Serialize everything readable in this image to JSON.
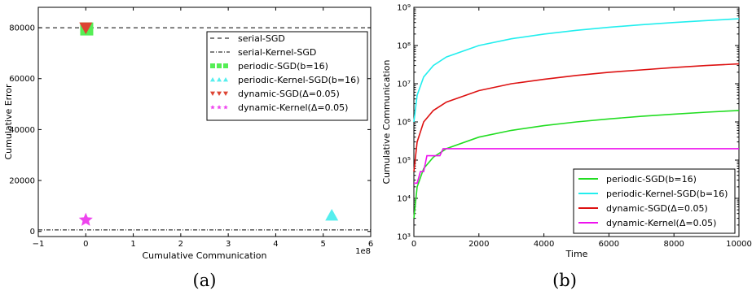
{
  "chart_data": [
    {
      "type": "scatter",
      "panel": "(a)",
      "xlabel": "Cumulative Communication",
      "ylabel": "Cumulative Error",
      "x_multiplier_label": "1e8",
      "xlim": [
        -1,
        6
      ],
      "ylim": [
        -2000,
        88000
      ],
      "xticks": [
        "−1",
        "0",
        "1",
        "2",
        "3",
        "4",
        "5",
        "6"
      ],
      "yticks": [
        "0",
        "20000",
        "40000",
        "60000",
        "80000"
      ],
      "legend_position": "upper-right",
      "series": [
        {
          "name": "serial-SGD",
          "kind": "hline",
          "y": 80000,
          "style": "dashed",
          "color": "#000000"
        },
        {
          "name": "serial-Kernel-SGD",
          "kind": "hline",
          "y": 600,
          "style": "dashdot",
          "color": "#000000"
        },
        {
          "name": "periodic-SGD(b=16)",
          "marker": "square",
          "color": "#55ee55",
          "points": [
            [
              0.02,
              79500
            ]
          ]
        },
        {
          "name": "periodic-Kernel-SGD(b=16)",
          "marker": "triangle-up",
          "color": "#55eeee",
          "points": [
            [
              5.18,
              6300
            ]
          ]
        },
        {
          "name": "dynamic-SGD(Δ=0.05)",
          "marker": "triangle-down",
          "color": "#dd4433",
          "points": [
            [
              0.0,
              80000
            ]
          ]
        },
        {
          "name": "dynamic-Kernel(Δ=0.05)",
          "marker": "star",
          "color": "#ee44ee",
          "points": [
            [
              0.0,
              4500
            ]
          ]
        }
      ]
    },
    {
      "type": "line",
      "panel": "(b)",
      "xlabel": "Time",
      "ylabel": "Cumulative Communication",
      "yscale": "log",
      "xlim": [
        0,
        10000
      ],
      "ylim_exp": [
        3,
        9
      ],
      "xticks": [
        "0",
        "2000",
        "4000",
        "6000",
        "8000",
        "10000"
      ],
      "yticks": [
        "10³",
        "10⁴",
        "10⁵",
        "10⁶",
        "10⁷",
        "10⁸",
        "10⁹"
      ],
      "legend_position": "lower-right",
      "series": [
        {
          "name": "periodic-SGD(b=16)",
          "color": "#22dd22",
          "x": [
            0,
            100,
            300,
            600,
            1000,
            2000,
            3000,
            4000,
            5000,
            6000,
            7000,
            8000,
            9000,
            10000
          ],
          "y": [
            3000,
            20000,
            60000,
            120000,
            200000,
            400000,
            600000,
            800000,
            1000000,
            1200000,
            1400000,
            1600000,
            1800000,
            2000000
          ]
        },
        {
          "name": "periodic-Kernel-SGD(b=16)",
          "color": "#22eeee",
          "x": [
            0,
            100,
            300,
            600,
            1000,
            2000,
            3000,
            4000,
            5000,
            6000,
            7000,
            8000,
            9000,
            10000
          ],
          "y": [
            1000000,
            5000000,
            15000000,
            30000000,
            50000000,
            100000000,
            150000000,
            200000000,
            250000000,
            300000000,
            350000000,
            400000000,
            450000000,
            500000000
          ]
        },
        {
          "name": "dynamic-SGD(Δ=0.05)",
          "color": "#dd1111",
          "x": [
            0,
            100,
            300,
            600,
            1000,
            2000,
            3000,
            4000,
            5000,
            6000,
            7000,
            8000,
            9000,
            10000
          ],
          "y": [
            50000,
            300000,
            1000000,
            2000000,
            3300000,
            6600000,
            10000000,
            13000000,
            16500000,
            20000000,
            23000000,
            26500000,
            30000000,
            33000000
          ]
        },
        {
          "name": "dynamic-Kernel(Δ=0.05)",
          "color": "#ee11ee",
          "step": true,
          "x": [
            0,
            100,
            200,
            300,
            400,
            800,
            900,
            10000
          ],
          "y": [
            25000,
            25000,
            50000,
            50000,
            130000,
            130000,
            200000,
            200000
          ]
        }
      ]
    }
  ],
  "captions": {
    "a": "(a)",
    "b": "(b)"
  }
}
